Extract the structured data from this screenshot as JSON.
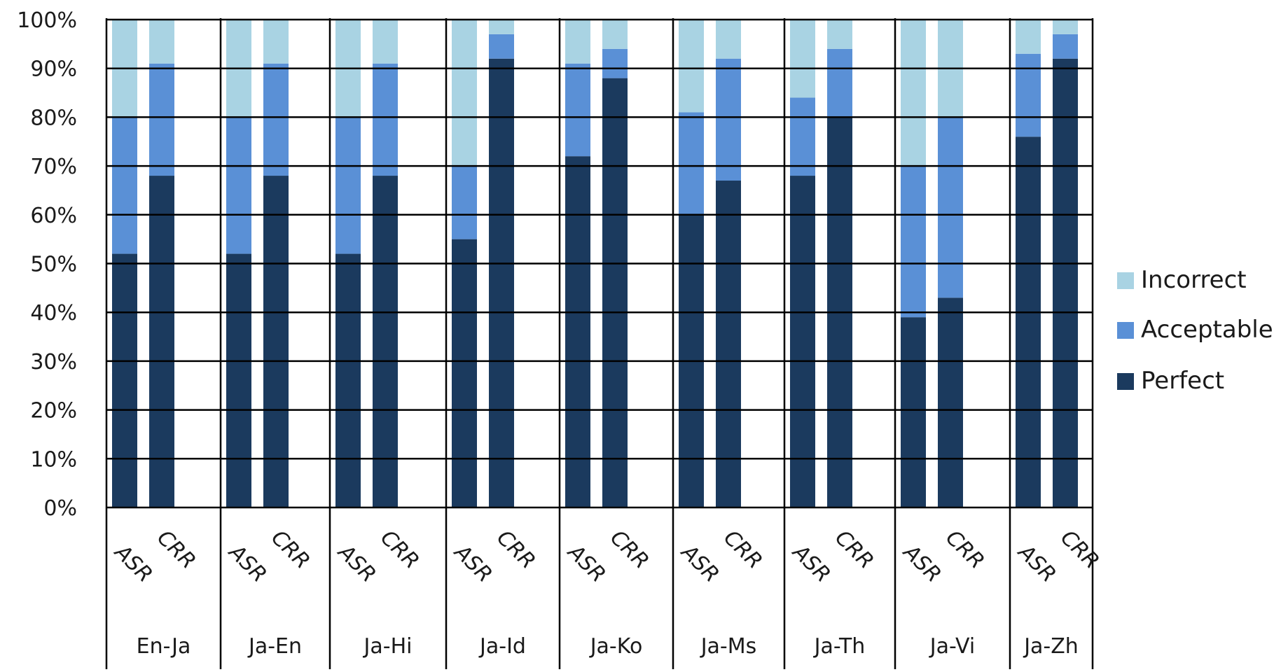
{
  "chart_data": {
    "type": "bar",
    "stacked": true,
    "title": "",
    "xlabel": "",
    "ylabel": "",
    "ylim": [
      0,
      100
    ],
    "y_ticks": [
      "0%",
      "10%",
      "20%",
      "30%",
      "40%",
      "50%",
      "60%",
      "70%",
      "80%",
      "90%",
      "100%"
    ],
    "grid": true,
    "legend_position": "right",
    "groups": [
      {
        "label": "En-Ja",
        "bars": [
          {
            "label": "ASR",
            "values": {
              "Perfect": 52,
              "Acceptable": 28,
              "Incorrect": 20
            }
          },
          {
            "label": "CRR",
            "values": {
              "Perfect": 68,
              "Acceptable": 23,
              "Incorrect": 9
            }
          }
        ]
      },
      {
        "label": "Ja-En",
        "bars": [
          {
            "label": "ASR",
            "values": {
              "Perfect": 52,
              "Acceptable": 28,
              "Incorrect": 20
            }
          },
          {
            "label": "CRR",
            "values": {
              "Perfect": 68,
              "Acceptable": 23,
              "Incorrect": 9
            }
          }
        ]
      },
      {
        "label": "Ja-Hi",
        "bars": [
          {
            "label": "ASR",
            "values": {
              "Perfect": 52,
              "Acceptable": 28,
              "Incorrect": 20
            }
          },
          {
            "label": "CRR",
            "values": {
              "Perfect": 68,
              "Acceptable": 23,
              "Incorrect": 9
            }
          }
        ]
      },
      {
        "label": "Ja-Id",
        "bars": [
          {
            "label": "ASR",
            "values": {
              "Perfect": 55,
              "Acceptable": 15,
              "Incorrect": 30
            }
          },
          {
            "label": "CRR",
            "values": {
              "Perfect": 92,
              "Acceptable": 5,
              "Incorrect": 3
            }
          }
        ]
      },
      {
        "label": "Ja-Ko",
        "bars": [
          {
            "label": "ASR",
            "values": {
              "Perfect": 72,
              "Acceptable": 19,
              "Incorrect": 9
            }
          },
          {
            "label": "CRR",
            "values": {
              "Perfect": 88,
              "Acceptable": 6,
              "Incorrect": 6
            }
          }
        ]
      },
      {
        "label": "Ja-Ms",
        "bars": [
          {
            "label": "ASR",
            "values": {
              "Perfect": 60,
              "Acceptable": 21,
              "Incorrect": 19
            }
          },
          {
            "label": "CRR",
            "values": {
              "Perfect": 67,
              "Acceptable": 25,
              "Incorrect": 8
            }
          }
        ]
      },
      {
        "label": "Ja-Th",
        "bars": [
          {
            "label": "ASR",
            "values": {
              "Perfect": 68,
              "Acceptable": 16,
              "Incorrect": 16
            }
          },
          {
            "label": "CRR",
            "values": {
              "Perfect": 80,
              "Acceptable": 14,
              "Incorrect": 6
            }
          }
        ]
      },
      {
        "label": "Ja-Vi",
        "bars": [
          {
            "label": "ASR",
            "values": {
              "Perfect": 39,
              "Acceptable": 31,
              "Incorrect": 30
            }
          },
          {
            "label": "CRR",
            "values": {
              "Perfect": 43,
              "Acceptable": 37,
              "Incorrect": 20
            }
          }
        ]
      },
      {
        "label": "Ja-Zh",
        "bars": [
          {
            "label": "ASR",
            "values": {
              "Perfect": 76,
              "Acceptable": 17,
              "Incorrect": 7
            }
          },
          {
            "label": "CRR",
            "values": {
              "Perfect": 92,
              "Acceptable": 5,
              "Incorrect": 3
            }
          }
        ]
      }
    ],
    "series": [
      {
        "name": "Incorrect",
        "color": "#a9d3e3"
      },
      {
        "name": "Acceptable",
        "color": "#5a90d6"
      },
      {
        "name": "Perfect",
        "color": "#1b3a5e"
      }
    ]
  }
}
